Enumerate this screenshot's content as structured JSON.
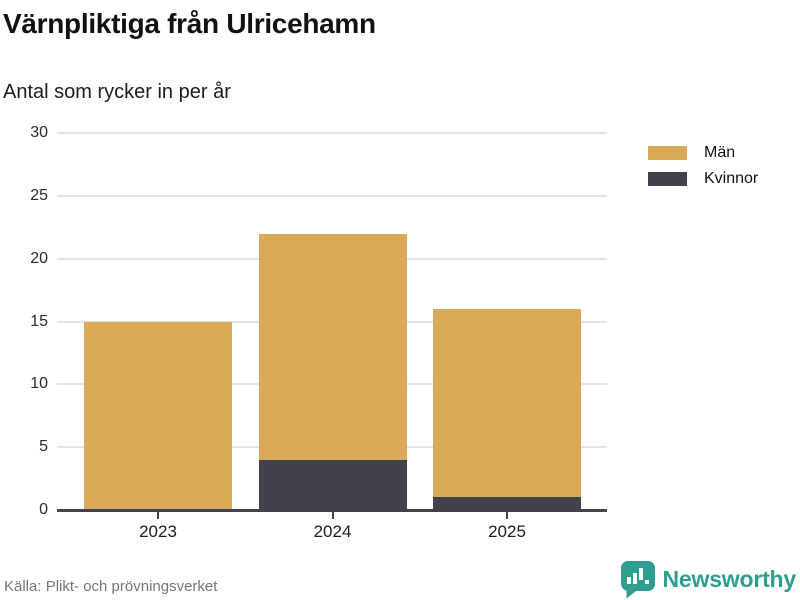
{
  "header": {
    "title": "Värnpliktiga från Ulricehamn",
    "subtitle": "Antal som rycker in per år"
  },
  "chart_data": {
    "type": "bar",
    "stacked": true,
    "title": "Värnpliktiga från Ulricehamn",
    "subtitle": "Antal som rycker in per år",
    "categories": [
      "2023",
      "2024",
      "2025"
    ],
    "series": [
      {
        "name": "Män",
        "color": "#d9ab58",
        "values": [
          15,
          18,
          15
        ]
      },
      {
        "name": "Kvinnor",
        "color": "#42424f",
        "values": [
          0,
          4,
          1
        ]
      }
    ],
    "stack_order_bottom_to_top": [
      "Kvinnor",
      "Män"
    ],
    "stack_totals": [
      15,
      22,
      16
    ],
    "xlabel": "",
    "ylabel": "",
    "ylim": [
      0,
      30
    ],
    "yticks": [
      0,
      5,
      10,
      15,
      20,
      25,
      30
    ],
    "grid": true,
    "legend_position": "top-right",
    "axis_color": "#42424f",
    "gridline_color": "#e4e4e4"
  },
  "footer": {
    "source": "Källa: Plikt- och prövningsverket",
    "brand": "Newsworthy",
    "brand_color": "#2f9e8f"
  }
}
